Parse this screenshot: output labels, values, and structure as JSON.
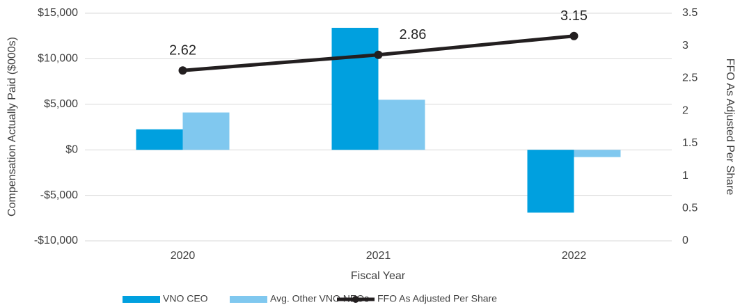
{
  "chart_data": {
    "type": "bar_line",
    "categories": [
      "2020",
      "2021",
      "2022"
    ],
    "series": [
      {
        "name": "VNO CEO",
        "color": "#00a0df",
        "values": [
          2250,
          13400,
          -6900
        ]
      },
      {
        "name": "Avg. Other VNO NEOs",
        "color": "#80c8ef",
        "values": [
          4100,
          5500,
          -800
        ]
      },
      {
        "name": "FFO As Adjusted Per Share",
        "color": "#231f20",
        "axis": "y2",
        "values": [
          2.62,
          2.86,
          3.15
        ]
      }
    ],
    "ylabel": "Compensation Actually Paid ($000s)",
    "y2label": "FFO As Adjusted Per Share",
    "xlabel": "Fiscal Year",
    "ylim": [
      -10000,
      15000
    ],
    "yticks": [
      {
        "value": -10000,
        "label": "-$10,000"
      },
      {
        "value": -5000,
        "label": "-$5,000"
      },
      {
        "value": 0,
        "label": "$0"
      },
      {
        "value": 5000,
        "label": "$5,000"
      },
      {
        "value": 10000,
        "label": "$10,000"
      },
      {
        "value": 15000,
        "label": "$15,000"
      }
    ],
    "y2lim": [
      0,
      3.5
    ],
    "y2ticks": [
      0,
      0.5,
      1,
      1.5,
      2,
      2.5,
      3,
      3.5
    ],
    "grid": true,
    "legend": "bottom"
  }
}
